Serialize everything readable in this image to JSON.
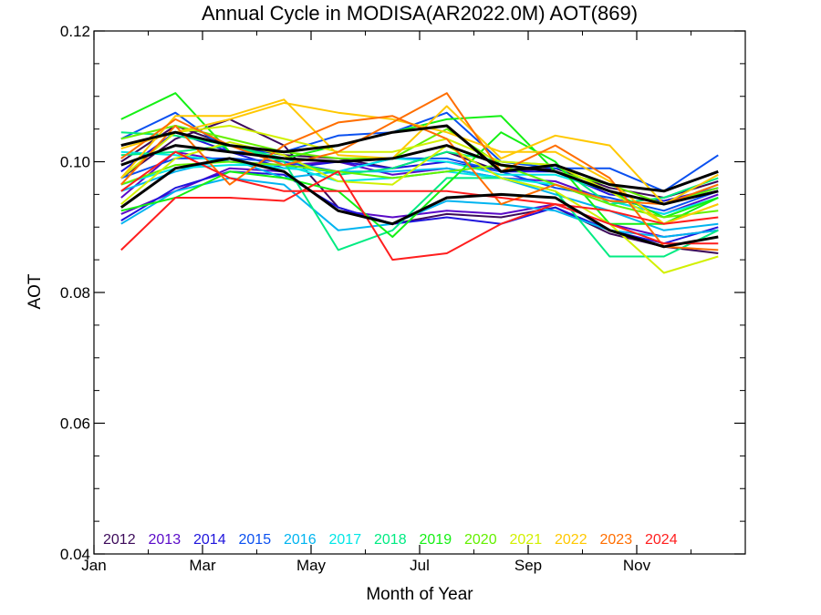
{
  "chart_data": {
    "type": "line",
    "title": "Annual Cycle in MODISA(AR2022.0M) AOT(869)",
    "xlabel": "Month of Year",
    "ylabel": "AOT",
    "xlim": [
      1,
      13
    ],
    "ylim": [
      0.04,
      0.12
    ],
    "x_ticks": [
      {
        "value": 1,
        "label": "Jan"
      },
      {
        "value": 3,
        "label": "Mar"
      },
      {
        "value": 5,
        "label": "May"
      },
      {
        "value": 7,
        "label": "Jul"
      },
      {
        "value": 9,
        "label": "Sep"
      },
      {
        "value": 11,
        "label": "Nov"
      }
    ],
    "y_ticks": [
      {
        "value": 0.04,
        "label": "0.04"
      },
      {
        "value": 0.06,
        "label": "0.06"
      },
      {
        "value": 0.08,
        "label": "0.08"
      },
      {
        "value": 0.1,
        "label": "0.10"
      },
      {
        "value": 0.12,
        "label": "0.12"
      }
    ],
    "x": [
      1.5,
      2.5,
      3.5,
      4.5,
      5.5,
      6.5,
      7.5,
      8.5,
      9.5,
      10.5,
      11.5,
      12.5
    ],
    "legend_position": "bottom",
    "series": [
      {
        "name": "2012",
        "color": "#3c0a5a",
        "values": [
          0.1,
          0.1055,
          0.1025,
          0.101,
          0.1005,
          0.099,
          0.1015,
          0.0985,
          0.099,
          0.096,
          0.0945,
          0.097
        ],
        "extra_lines": [
          [
            0.0975,
            0.1035,
            0.1065,
            0.1025,
            0.093,
            0.0905,
            0.092,
            0.0915,
            0.093,
            0.089,
            0.087,
            0.086
          ]
        ]
      },
      {
        "name": "2013",
        "color": "#5a0ac8",
        "values": [
          0.0945,
          0.1015,
          0.1,
          0.0995,
          0.1,
          0.098,
          0.099,
          0.0975,
          0.097,
          0.094,
          0.092,
          0.095
        ],
        "extra_lines": [
          [
            0.092,
            0.0955,
            0.099,
            0.0985,
            0.0925,
            0.0915,
            0.0925,
            0.092,
            0.0935,
            0.0905,
            0.0885,
            0.0895
          ]
        ]
      },
      {
        "name": "2014",
        "color": "#1e14dc",
        "values": [
          0.0985,
          0.1045,
          0.1015,
          0.099,
          0.1,
          0.099,
          0.1,
          0.0985,
          0.0985,
          0.095,
          0.094,
          0.096
        ],
        "extra_lines": [
          [
            0.091,
            0.096,
            0.0985,
            0.098,
            0.093,
            0.0905,
            0.0915,
            0.0905,
            0.093,
            0.0895,
            0.0875,
            0.09
          ]
        ]
      },
      {
        "name": "2015",
        "color": "#0a50f0",
        "values": [
          0.1035,
          0.1075,
          0.1015,
          0.1015,
          0.104,
          0.1045,
          0.1075,
          0.1,
          0.099,
          0.099,
          0.0955,
          0.101
        ],
        "extra_lines": [
          [
            0.0975,
            0.1005,
            0.1005,
            0.1,
            0.0985,
            0.1005,
            0.1005,
            0.0985,
            0.096,
            0.0945,
            0.0925,
            0.0955
          ]
        ]
      },
      {
        "name": "2016",
        "color": "#00b4f0",
        "values": [
          0.0955,
          0.0985,
          0.1005,
          0.0975,
          0.0985,
          0.0985,
          0.099,
          0.0975,
          0.095,
          0.0925,
          0.0895,
          0.0905
        ],
        "extra_lines": [
          [
            0.0905,
            0.0955,
            0.0975,
            0.0965,
            0.0895,
            0.0905,
            0.094,
            0.0935,
            0.0925,
            0.0895,
            0.0885,
            0.0895
          ]
        ]
      },
      {
        "name": "2017",
        "color": "#00e6e6",
        "values": [
          0.1015,
          0.101,
          0.1,
          0.099,
          0.0985,
          0.1005,
          0.1,
          0.098,
          0.098,
          0.0955,
          0.0935,
          0.096
        ],
        "extra_lines": [
          [
            0.0965,
            0.099,
            0.0995,
            0.0995,
            0.097,
            0.0975,
            0.0985,
            0.0975,
            0.0965,
            0.094,
            0.092,
            0.0945
          ]
        ]
      },
      {
        "name": "2018",
        "color": "#00eb82",
        "values": [
          0.1045,
          0.104,
          0.1025,
          0.1005,
          0.098,
          0.099,
          0.1015,
          0.1,
          0.0995,
          0.0935,
          0.0945,
          0.0975
        ],
        "extra_lines": [
          [
            0.101,
            0.1015,
            0.1025,
            0.1,
            0.0865,
            0.0895,
            0.0975,
            0.0975,
            0.0955,
            0.0855,
            0.0855,
            0.0895
          ]
        ]
      },
      {
        "name": "2019",
        "color": "#14f014",
        "values": [
          0.1065,
          0.1105,
          0.1015,
          0.1005,
          0.1025,
          0.1045,
          0.1065,
          0.107,
          0.0985,
          0.0955,
          0.0915,
          0.0945
        ],
        "extra_lines": [
          [
            0.0925,
            0.0945,
            0.0985,
            0.0975,
            0.0955,
            0.0885,
            0.0965,
            0.1045,
            0.1,
            0.0905,
            0.0905,
            0.0945
          ]
        ]
      },
      {
        "name": "2020",
        "color": "#64f000",
        "values": [
          0.1035,
          0.1055,
          0.1035,
          0.1015,
          0.1005,
          0.1005,
          0.105,
          0.0995,
          0.0985,
          0.0965,
          0.0935,
          0.096
        ],
        "extra_lines": [
          [
            0.0965,
            0.0995,
            0.1,
            0.0995,
            0.0985,
            0.0975,
            0.0985,
            0.0995,
            0.0965,
            0.0935,
            0.0915,
            0.0925
          ]
        ]
      },
      {
        "name": "2021",
        "color": "#d2f000",
        "values": [
          0.0975,
          0.1045,
          0.1055,
          0.1035,
          0.1015,
          0.1015,
          0.1035,
          0.1,
          0.0995,
          0.0955,
          0.0905,
          0.0935
        ],
        "extra_lines": [
          [
            0.0935,
            0.1005,
            0.103,
            0.101,
            0.097,
            0.0965,
            0.1025,
            0.0975,
            0.0955,
            0.0905,
            0.083,
            0.0855
          ]
        ]
      },
      {
        "name": "2022",
        "color": "#ffc800",
        "values": [
          0.0975,
          0.107,
          0.107,
          0.1095,
          0.101,
          0.1005,
          0.1085,
          0.1005,
          0.104,
          0.1025,
          0.0935,
          0.098
        ],
        "extra_lines": [
          [
            0.102,
            0.1045,
            0.1065,
            0.109,
            0.1075,
            0.1065,
            0.1045,
            0.1015,
            0.1015,
            0.097,
            0.0905,
            0.0935
          ]
        ]
      },
      {
        "name": "2023",
        "color": "#ff6e00",
        "values": [
          0.1005,
          0.1065,
          0.1025,
          0.0995,
          0.1015,
          0.106,
          0.1105,
          0.0985,
          0.1025,
          0.0975,
          0.087,
          0.0865
        ],
        "extra_lines": [
          [
            0.0965,
            0.1055,
            0.0965,
            0.1025,
            0.106,
            0.107,
            0.1035,
            0.0935,
            0.0965,
            0.094,
            0.0935,
            0.0965
          ]
        ]
      },
      {
        "name": "2024",
        "color": "#ff1e1e",
        "values": [
          0.0865,
          0.0945,
          0.0945,
          0.094,
          0.0985,
          0.085,
          0.086,
          0.0905,
          0.0935,
          0.0905,
          0.0875,
          0.0875
        ],
        "extra_lines": [
          [
            0.0955,
            0.1015,
            0.0975,
            0.0955,
            0.0955,
            0.0955,
            0.0955,
            0.0945,
            0.0935,
            0.0925,
            0.0905,
            0.0915
          ]
        ]
      }
    ],
    "black_lines": [
      [
        0.1025,
        0.1045,
        0.1025,
        0.1015,
        0.1025,
        0.1045,
        0.1055,
        0.0985,
        0.0995,
        0.0965,
        0.0955,
        0.0985
      ],
      [
        0.0995,
        0.1025,
        0.1015,
        0.1005,
        0.1,
        0.1005,
        0.1025,
        0.0995,
        0.0985,
        0.0955,
        0.0935,
        0.0955
      ],
      [
        0.093,
        0.099,
        0.1005,
        0.0985,
        0.0925,
        0.0905,
        0.0945,
        0.095,
        0.0945,
        0.0895,
        0.087,
        0.0885
      ]
    ]
  }
}
